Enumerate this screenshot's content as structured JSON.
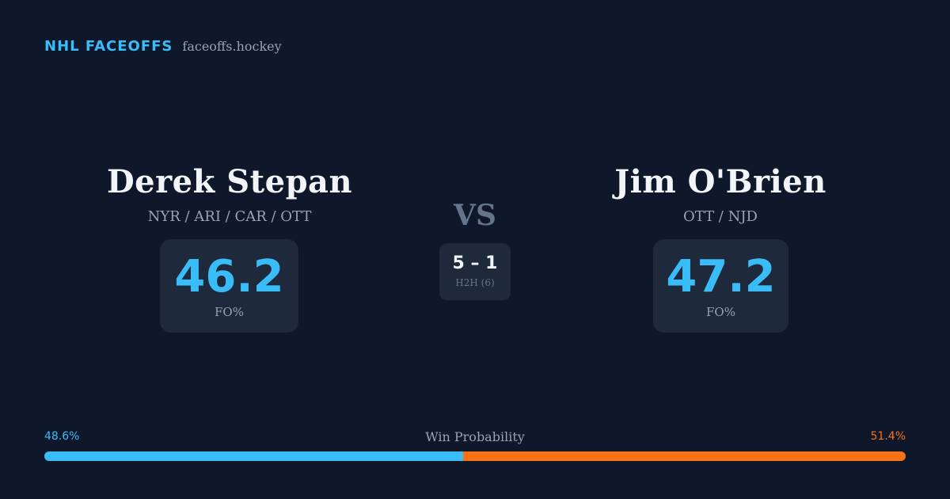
{
  "brand": {
    "name": "NHL FACEOFFS",
    "site": "faceoffs.hockey"
  },
  "players": {
    "left": {
      "name": "Derek Stepan",
      "teams": "NYR / ARI / CAR / OTT",
      "fo_pct": "46.2",
      "fo_label": "FO%"
    },
    "right": {
      "name": "Jim O'Brien",
      "teams": "OTT / NJD",
      "fo_pct": "47.2",
      "fo_label": "FO%"
    }
  },
  "vs_label": "VS",
  "h2h": {
    "score": "5 – 1",
    "label": "H2H (6)"
  },
  "win_probability": {
    "title": "Win Probability",
    "left_label": "48.6%",
    "right_label": "51.4%",
    "left_value": 48.6,
    "right_value": 51.4
  },
  "colors": {
    "background": "#0f172a",
    "card": "#1e293b",
    "accent_left": "#38bdf8",
    "accent_right": "#f97316"
  }
}
